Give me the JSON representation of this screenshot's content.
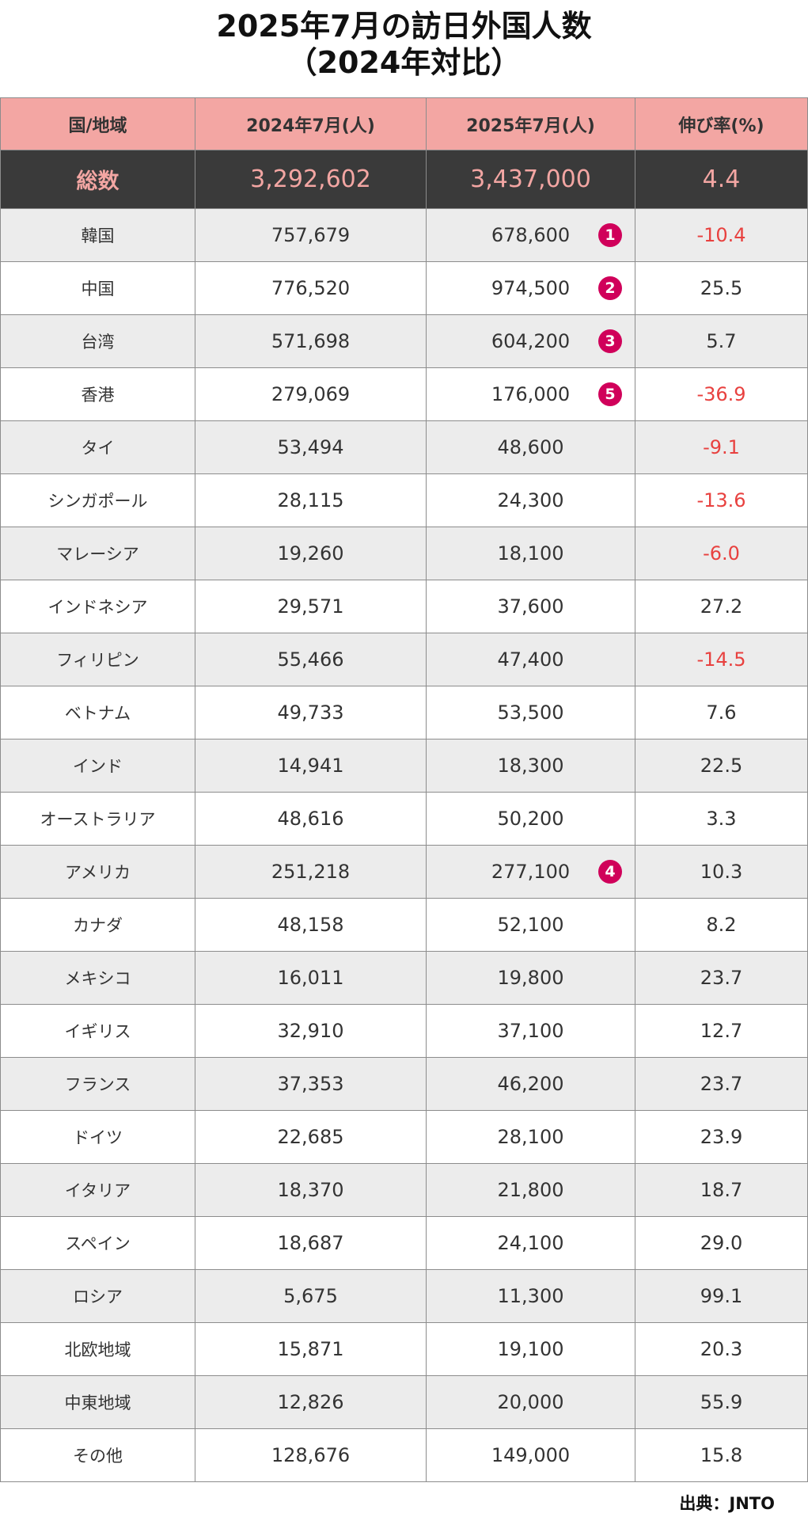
{
  "title": {
    "line1": "2025年7月の訪日外国人数",
    "line2": "（2024年対比）"
  },
  "source": "出典：JNTO",
  "colors": {
    "header_bg": "#f3a6a3",
    "total_bg": "#3a3a3a",
    "total_text": "#f3a6a3",
    "negative_text": "#e8413f",
    "rank_badge": "#d0005a",
    "row_alt_bg": "#ececec"
  },
  "chart_data": {
    "type": "table",
    "columns": [
      "国/地域",
      "2024年7月(人)",
      "2025年7月(人)",
      "伸び率(%)"
    ],
    "total": {
      "region": "総数",
      "v2024": "3,292,602",
      "v2025": "3,437,000",
      "growth": "4.4"
    },
    "rows": [
      {
        "region": "韓国",
        "v2024": "757,679",
        "v2025": "678,600",
        "rank": "1",
        "growth": "-10.4",
        "negative": true
      },
      {
        "region": "中国",
        "v2024": "776,520",
        "v2025": "974,500",
        "rank": "2",
        "growth": "25.5",
        "negative": false
      },
      {
        "region": "台湾",
        "v2024": "571,698",
        "v2025": "604,200",
        "rank": "3",
        "growth": "5.7",
        "negative": false
      },
      {
        "region": "香港",
        "v2024": "279,069",
        "v2025": "176,000",
        "rank": "5",
        "growth": "-36.9",
        "negative": true
      },
      {
        "region": "タイ",
        "v2024": "53,494",
        "v2025": "48,600",
        "rank": "",
        "growth": "-9.1",
        "negative": true
      },
      {
        "region": "シンガポール",
        "v2024": "28,115",
        "v2025": "24,300",
        "rank": "",
        "growth": "-13.6",
        "negative": true
      },
      {
        "region": "マレーシア",
        "v2024": "19,260",
        "v2025": "18,100",
        "rank": "",
        "growth": "-6.0",
        "negative": true
      },
      {
        "region": "インドネシア",
        "v2024": "29,571",
        "v2025": "37,600",
        "rank": "",
        "growth": "27.2",
        "negative": false
      },
      {
        "region": "フィリピン",
        "v2024": "55,466",
        "v2025": "47,400",
        "rank": "",
        "growth": "-14.5",
        "negative": true
      },
      {
        "region": "ベトナム",
        "v2024": "49,733",
        "v2025": "53,500",
        "rank": "",
        "growth": "7.6",
        "negative": false
      },
      {
        "region": "インド",
        "v2024": "14,941",
        "v2025": "18,300",
        "rank": "",
        "growth": "22.5",
        "negative": false
      },
      {
        "region": "オーストラリア",
        "v2024": "48,616",
        "v2025": "50,200",
        "rank": "",
        "growth": "3.3",
        "negative": false
      },
      {
        "region": "アメリカ",
        "v2024": "251,218",
        "v2025": "277,100",
        "rank": "4",
        "growth": "10.3",
        "negative": false
      },
      {
        "region": "カナダ",
        "v2024": "48,158",
        "v2025": "52,100",
        "rank": "",
        "growth": "8.2",
        "negative": false
      },
      {
        "region": "メキシコ",
        "v2024": "16,011",
        "v2025": "19,800",
        "rank": "",
        "growth": "23.7",
        "negative": false
      },
      {
        "region": "イギリス",
        "v2024": "32,910",
        "v2025": "37,100",
        "rank": "",
        "growth": "12.7",
        "negative": false
      },
      {
        "region": "フランス",
        "v2024": "37,353",
        "v2025": "46,200",
        "rank": "",
        "growth": "23.7",
        "negative": false
      },
      {
        "region": "ドイツ",
        "v2024": "22,685",
        "v2025": "28,100",
        "rank": "",
        "growth": "23.9",
        "negative": false
      },
      {
        "region": "イタリア",
        "v2024": "18,370",
        "v2025": "21,800",
        "rank": "",
        "growth": "18.7",
        "negative": false
      },
      {
        "region": "スペイン",
        "v2024": "18,687",
        "v2025": "24,100",
        "rank": "",
        "growth": "29.0",
        "negative": false
      },
      {
        "region": "ロシア",
        "v2024": "5,675",
        "v2025": "11,300",
        "rank": "",
        "growth": "99.1",
        "negative": false
      },
      {
        "region": "北欧地域",
        "v2024": "15,871",
        "v2025": "19,100",
        "rank": "",
        "growth": "20.3",
        "negative": false
      },
      {
        "region": "中東地域",
        "v2024": "12,826",
        "v2025": "20,000",
        "rank": "",
        "growth": "55.9",
        "negative": false
      },
      {
        "region": "その他",
        "v2024": "128,676",
        "v2025": "149,000",
        "rank": "",
        "growth": "15.8",
        "negative": false
      }
    ]
  }
}
